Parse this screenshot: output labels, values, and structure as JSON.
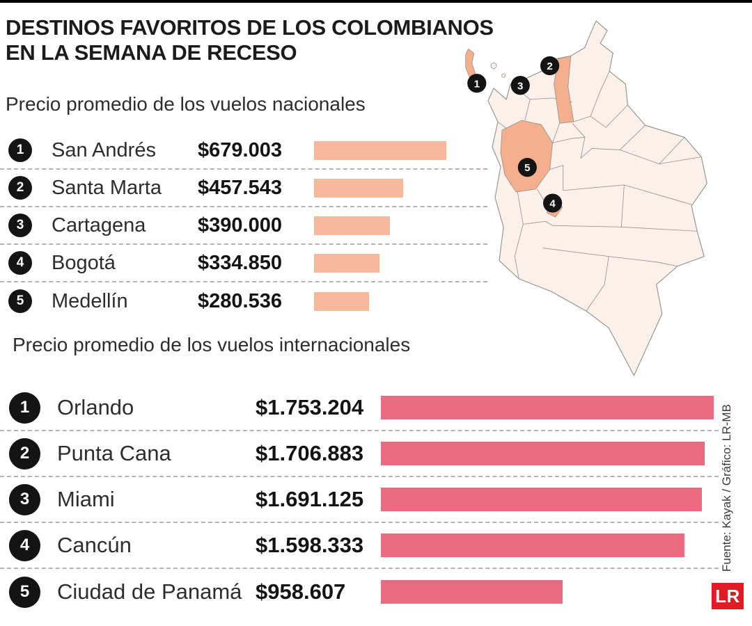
{
  "title": {
    "line1": "DESTINOS FAVORITOS DE LOS COLOMBIANOS",
    "line2": "EN LA SEMANA DE RECESO"
  },
  "source_credit": "Fuente: Kayak / Gráfico: LR-MB",
  "logo_text": "LR",
  "colors": {
    "national_bar": "#f6b89a",
    "international_bar": "#ea6a80",
    "map_base": "#fbf1ea",
    "map_highlight": "#f4b08d",
    "badge": "#141414",
    "logo_red": "#e01b22"
  },
  "chart_data": [
    {
      "type": "bar",
      "orientation": "horizontal",
      "title": "Precio promedio de los vuelos nacionales",
      "categories": [
        "San Andrés",
        "Santa Marta",
        "Cartagena",
        "Bogotá",
        "Medellín"
      ],
      "values": [
        679003,
        457543,
        390000,
        334850,
        280536
      ],
      "value_labels": [
        "$679.003",
        "$457.543",
        "$390.000",
        "$334.850",
        "$280.536"
      ],
      "ranks": [
        "1",
        "2",
        "3",
        "4",
        "5"
      ],
      "bar_color": "#f6b89a",
      "xlim": [
        0,
        679003
      ]
    },
    {
      "type": "bar",
      "orientation": "horizontal",
      "title": "Precio promedio de los vuelos internacionales",
      "categories": [
        "Orlando",
        "Punta Cana",
        "Miami",
        "Cancún",
        "Ciudad de Panamá"
      ],
      "values": [
        1753204,
        1706883,
        1691125,
        1598333,
        958607
      ],
      "value_labels": [
        "$1.753.204",
        "$1.706.883",
        "$1.691.125",
        "$1.598.333",
        "$958.607"
      ],
      "ranks": [
        "1",
        "2",
        "3",
        "4",
        "5"
      ],
      "bar_color": "#ea6a80",
      "xlim": [
        0,
        1753204
      ]
    }
  ],
  "map": {
    "name": "Colombia",
    "markers": [
      {
        "n": "1",
        "x": 42,
        "y": 95
      },
      {
        "n": "2",
        "x": 146,
        "y": 70
      },
      {
        "n": "3",
        "x": 104,
        "y": 98
      },
      {
        "n": "4",
        "x": 150,
        "y": 266
      },
      {
        "n": "5",
        "x": 114,
        "y": 215
      }
    ]
  }
}
